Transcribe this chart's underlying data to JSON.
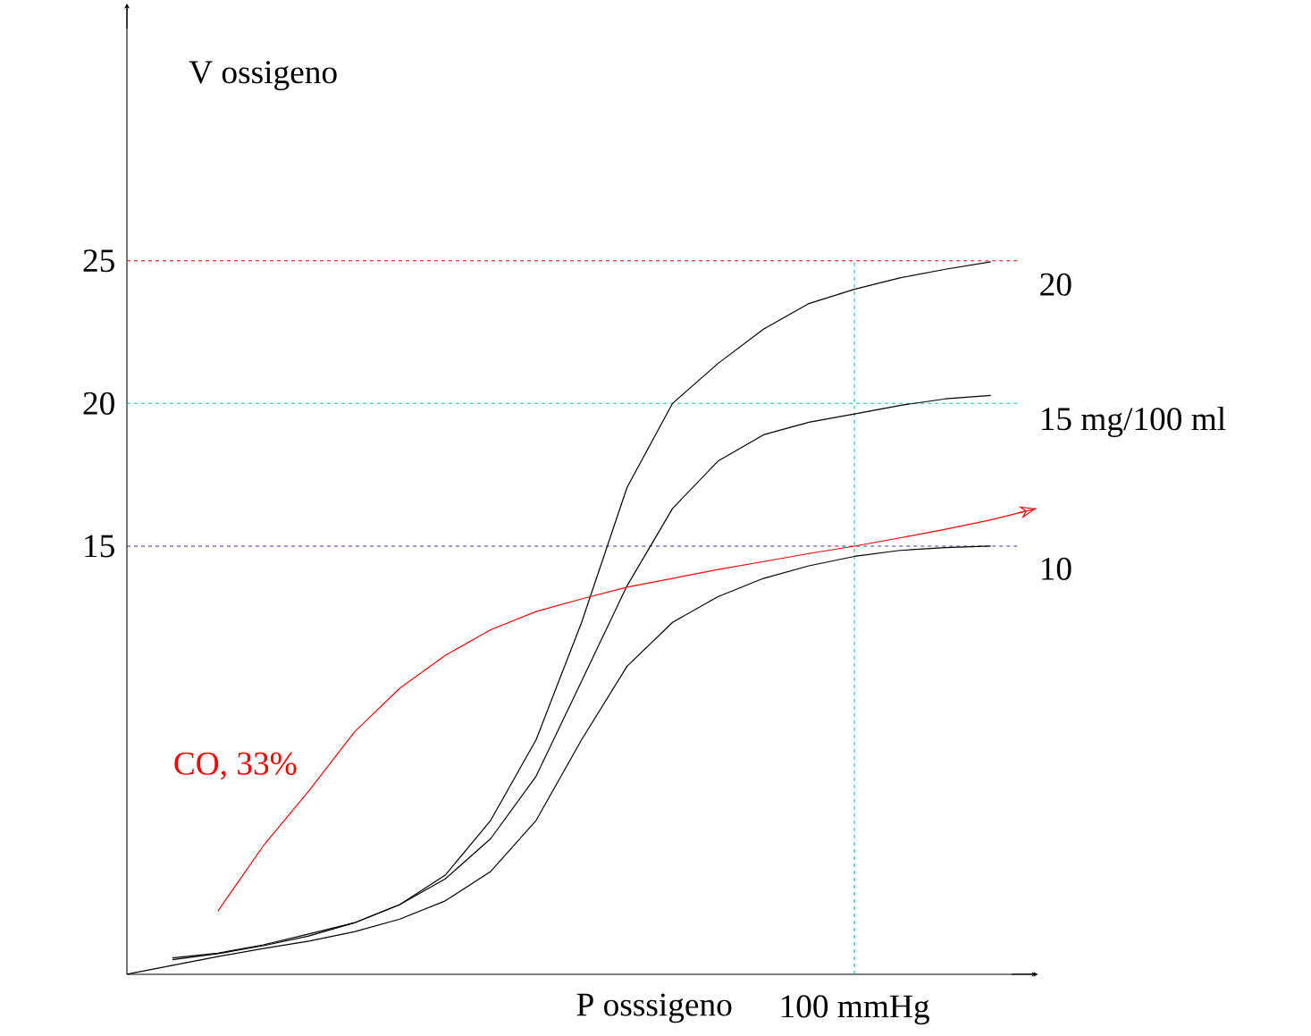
{
  "chart_data": {
    "type": "line",
    "xlabel": "P osssigeno",
    "ylabel": "V ossigeno",
    "categories": [
      null,
      null,
      null,
      null,
      null,
      null,
      null,
      null,
      null,
      null,
      null,
      null,
      null,
      null,
      null,
      null,
      "100 mmHg",
      null,
      null,
      null,
      null
    ],
    "ylim": [
      0,
      34
    ],
    "yticks": [
      15,
      20,
      25
    ],
    "grid": false,
    "series": [
      {
        "name": "20",
        "color": "#000000",
        "values": [
          null,
          0.51,
          0.72,
          1.0,
          1.34,
          1.8,
          2.44,
          3.47,
          5.39,
          8.22,
          12.33,
          17.06,
          20.0,
          21.4,
          22.6,
          23.5,
          24.0,
          24.4,
          24.7,
          24.96,
          null
        ]
      },
      {
        "name": "15 mg/100 ml",
        "color": "#000000",
        "values": [
          null,
          0.57,
          0.74,
          1.03,
          1.41,
          1.8,
          2.44,
          3.34,
          4.75,
          6.94,
          10.27,
          13.61,
          16.32,
          17.98,
          18.9,
          19.34,
          19.63,
          19.93,
          20.16,
          20.28,
          null
        ]
      },
      {
        "name": "10",
        "color": "#000000",
        "values": [
          0,
          0.31,
          0.62,
          0.9,
          1.16,
          1.49,
          1.93,
          2.57,
          3.6,
          5.39,
          8.22,
          10.79,
          12.33,
          13.23,
          13.87,
          14.31,
          14.64,
          14.85,
          14.95,
          15.0,
          null
        ]
      },
      {
        "name": "CO, 33%",
        "color": "#ff0000",
        "values": [
          null,
          null,
          2.21,
          4.5,
          6.42,
          8.48,
          10.02,
          11.17,
          12.07,
          12.71,
          13.15,
          13.56,
          13.87,
          14.18,
          14.46,
          14.74,
          15.0,
          15.29,
          15.59,
          15.92,
          16.32
        ]
      }
    ],
    "ref_lines": [
      {
        "axis": "y",
        "value": 25,
        "color": "#ff0000",
        "line_style": "dashed"
      },
      {
        "axis": "y",
        "value": 20,
        "color": "#00cc88",
        "line_style": "dashed"
      },
      {
        "axis": "y",
        "value": 15,
        "color": "#3333aa",
        "line_style": "dashed"
      },
      {
        "axis": "x",
        "value": "100 mmHg",
        "color": "#00cc88",
        "line_style": "dashed"
      }
    ]
  }
}
